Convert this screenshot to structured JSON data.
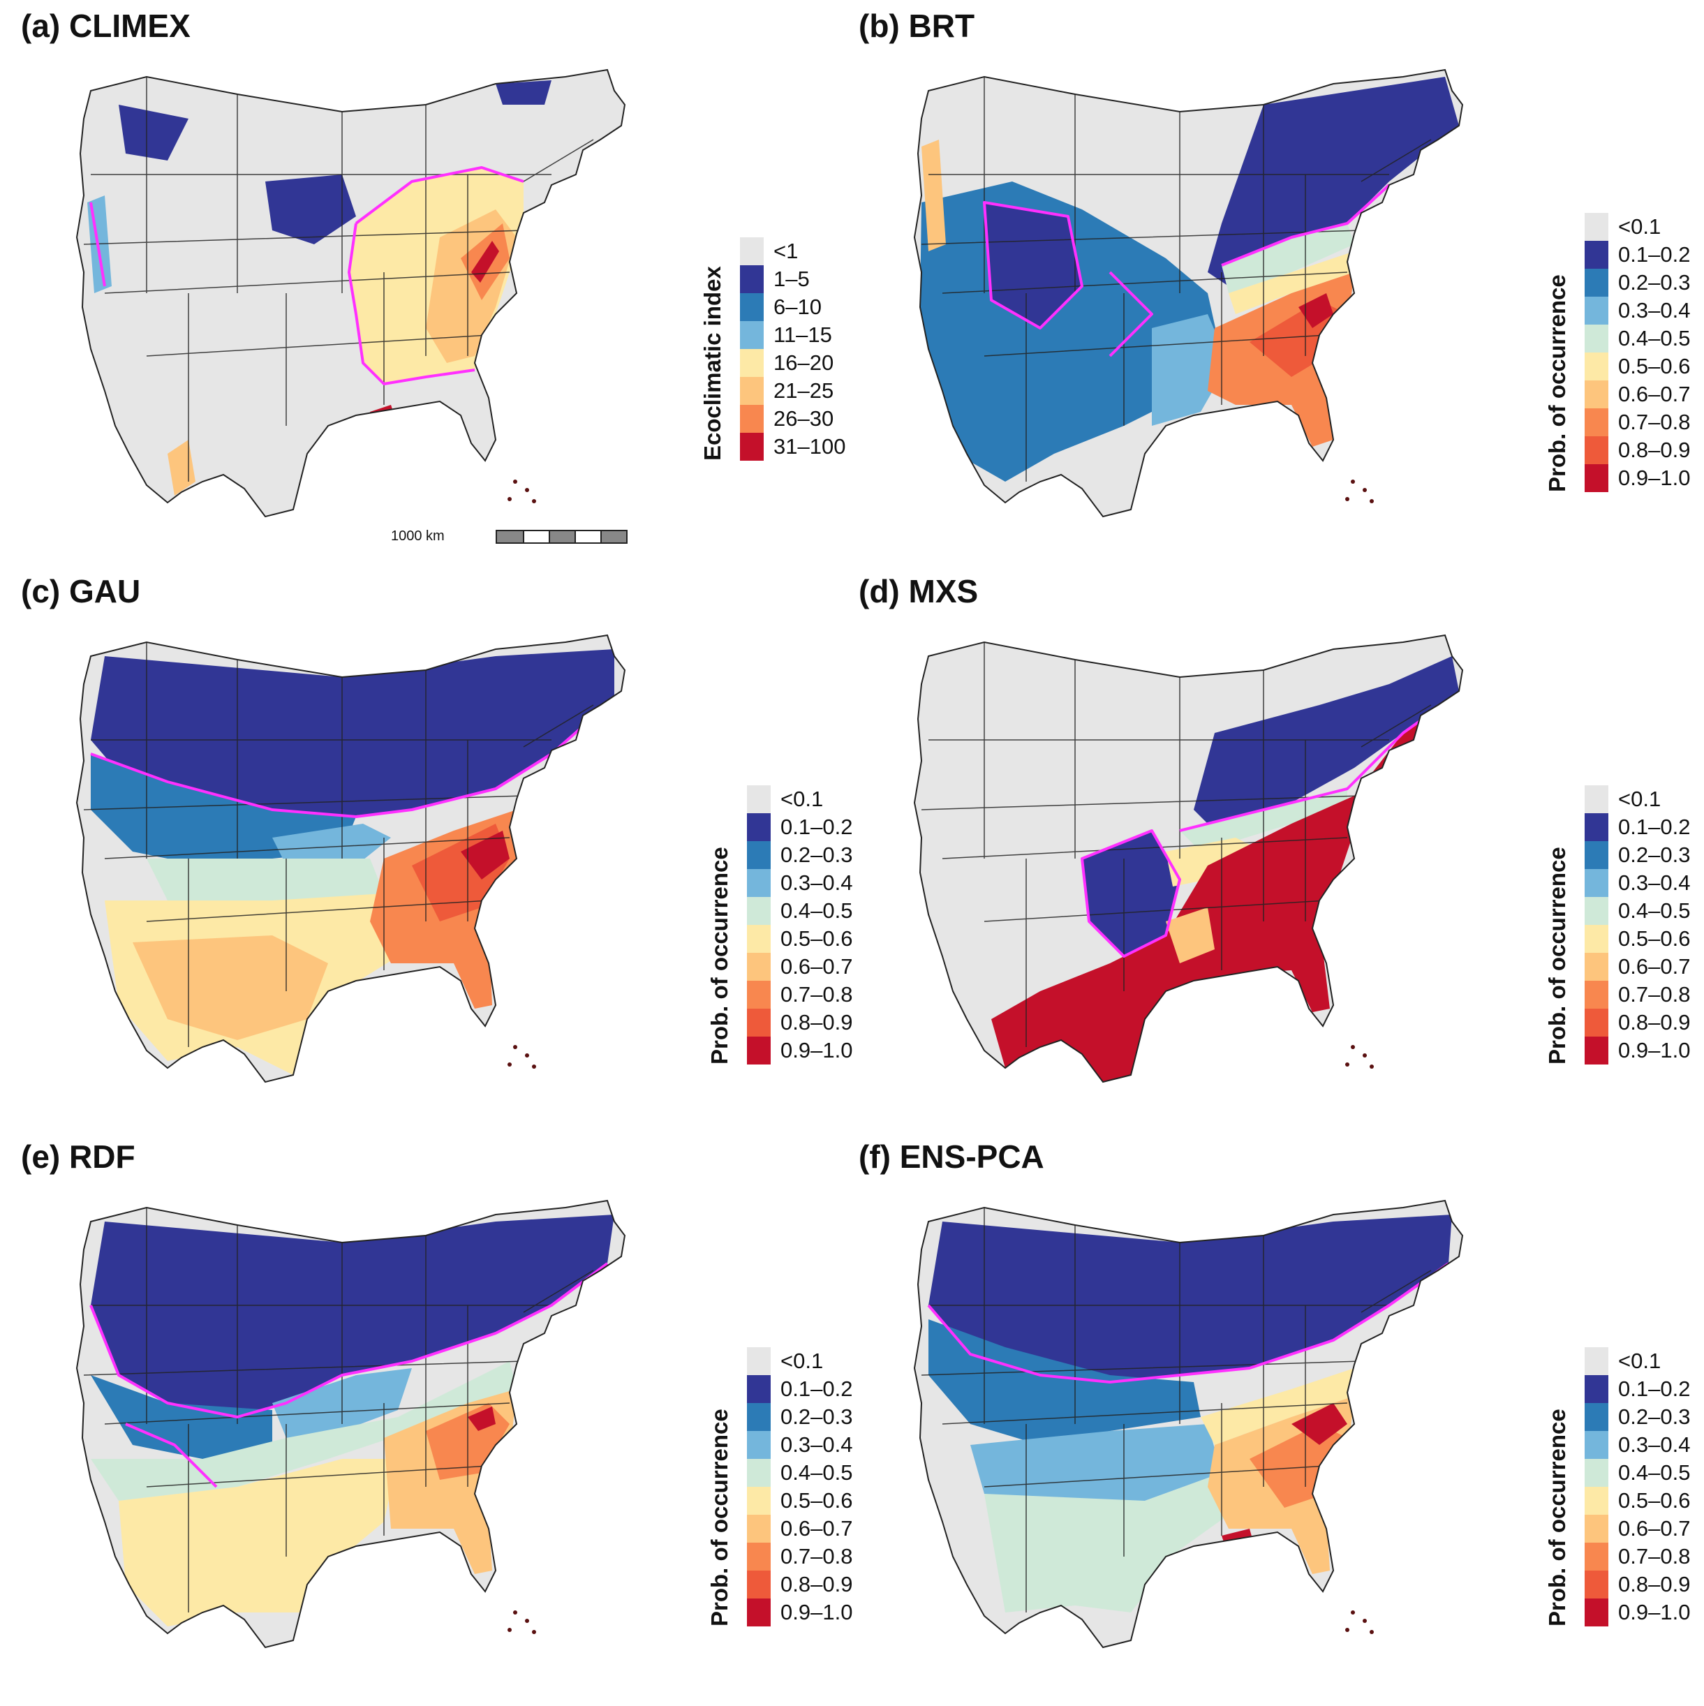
{
  "colors": {
    "nodata": "#e6e6e6",
    "c1": "#313695",
    "c2": "#2c7bb6",
    "c3": "#74b6dc",
    "c4": "#cfe9d8",
    "c5": "#fde9a6",
    "c6": "#fdc57d",
    "c7": "#f8874f",
    "c8": "#ee5a3a",
    "c9": "#c4102a",
    "boundary": "#ff30ff",
    "lines": "#222222"
  },
  "scalebar": {
    "label": "1000 km"
  },
  "panels": [
    {
      "id": "a",
      "title": "(a) CLIMEX",
      "legend_title": "Ecoclimatic index",
      "legend_items": [
        "<1",
        "1–5",
        "6–10",
        "11–15",
        "16–20",
        "21–25",
        "26–30",
        "31–100"
      ],
      "legend_colors": [
        "nodata",
        "c1",
        "c2",
        "c3",
        "c5",
        "c6",
        "c7",
        "c9"
      ]
    },
    {
      "id": "b",
      "title": "(b) BRT",
      "legend_title": "Prob. of occurrence",
      "legend_items": [
        "<0.1",
        "0.1–0.2",
        "0.2–0.3",
        "0.3–0.4",
        "0.4–0.5",
        "0.5–0.6",
        "0.6–0.7",
        "0.7–0.8",
        "0.8–0.9",
        "0.9–1.0"
      ],
      "legend_colors": [
        "nodata",
        "c1",
        "c2",
        "c3",
        "c4",
        "c5",
        "c6",
        "c7",
        "c8",
        "c9"
      ]
    },
    {
      "id": "c",
      "title": "(c) GAU",
      "legend_title": "Prob. of occurrence",
      "legend_items": [
        "<0.1",
        "0.1–0.2",
        "0.2–0.3",
        "0.3–0.4",
        "0.4–0.5",
        "0.5–0.6",
        "0.6–0.7",
        "0.7–0.8",
        "0.8–0.9",
        "0.9–1.0"
      ],
      "legend_colors": [
        "nodata",
        "c1",
        "c2",
        "c3",
        "c4",
        "c5",
        "c6",
        "c7",
        "c8",
        "c9"
      ]
    },
    {
      "id": "d",
      "title": "(d) MXS",
      "legend_title": "Prob. of occurrence",
      "legend_items": [
        "<0.1",
        "0.1–0.2",
        "0.2–0.3",
        "0.3–0.4",
        "0.4–0.5",
        "0.5–0.6",
        "0.6–0.7",
        "0.7–0.8",
        "0.8–0.9",
        "0.9–1.0"
      ],
      "legend_colors": [
        "nodata",
        "c1",
        "c2",
        "c3",
        "c4",
        "c5",
        "c6",
        "c7",
        "c8",
        "c9"
      ]
    },
    {
      "id": "e",
      "title": "(e) RDF",
      "legend_title": "Prob. of occurrence",
      "legend_items": [
        "<0.1",
        "0.1–0.2",
        "0.2–0.3",
        "0.3–0.4",
        "0.4–0.5",
        "0.5–0.6",
        "0.6–0.7",
        "0.7–0.8",
        "0.8–0.9",
        "0.9–1.0"
      ],
      "legend_colors": [
        "nodata",
        "c1",
        "c2",
        "c3",
        "c4",
        "c5",
        "c6",
        "c7",
        "c8",
        "c9"
      ]
    },
    {
      "id": "f",
      "title": "(f) ENS-PCA",
      "legend_title": "Prob. of occurrence",
      "legend_items": [
        "<0.1",
        "0.1–0.2",
        "0.2–0.3",
        "0.3–0.4",
        "0.4–0.5",
        "0.5–0.6",
        "0.6–0.7",
        "0.7–0.8",
        "0.8–0.9",
        "0.9–1.0"
      ],
      "legend_colors": [
        "nodata",
        "c1",
        "c2",
        "c3",
        "c4",
        "c5",
        "c6",
        "c7",
        "c8",
        "c9"
      ]
    }
  ]
}
